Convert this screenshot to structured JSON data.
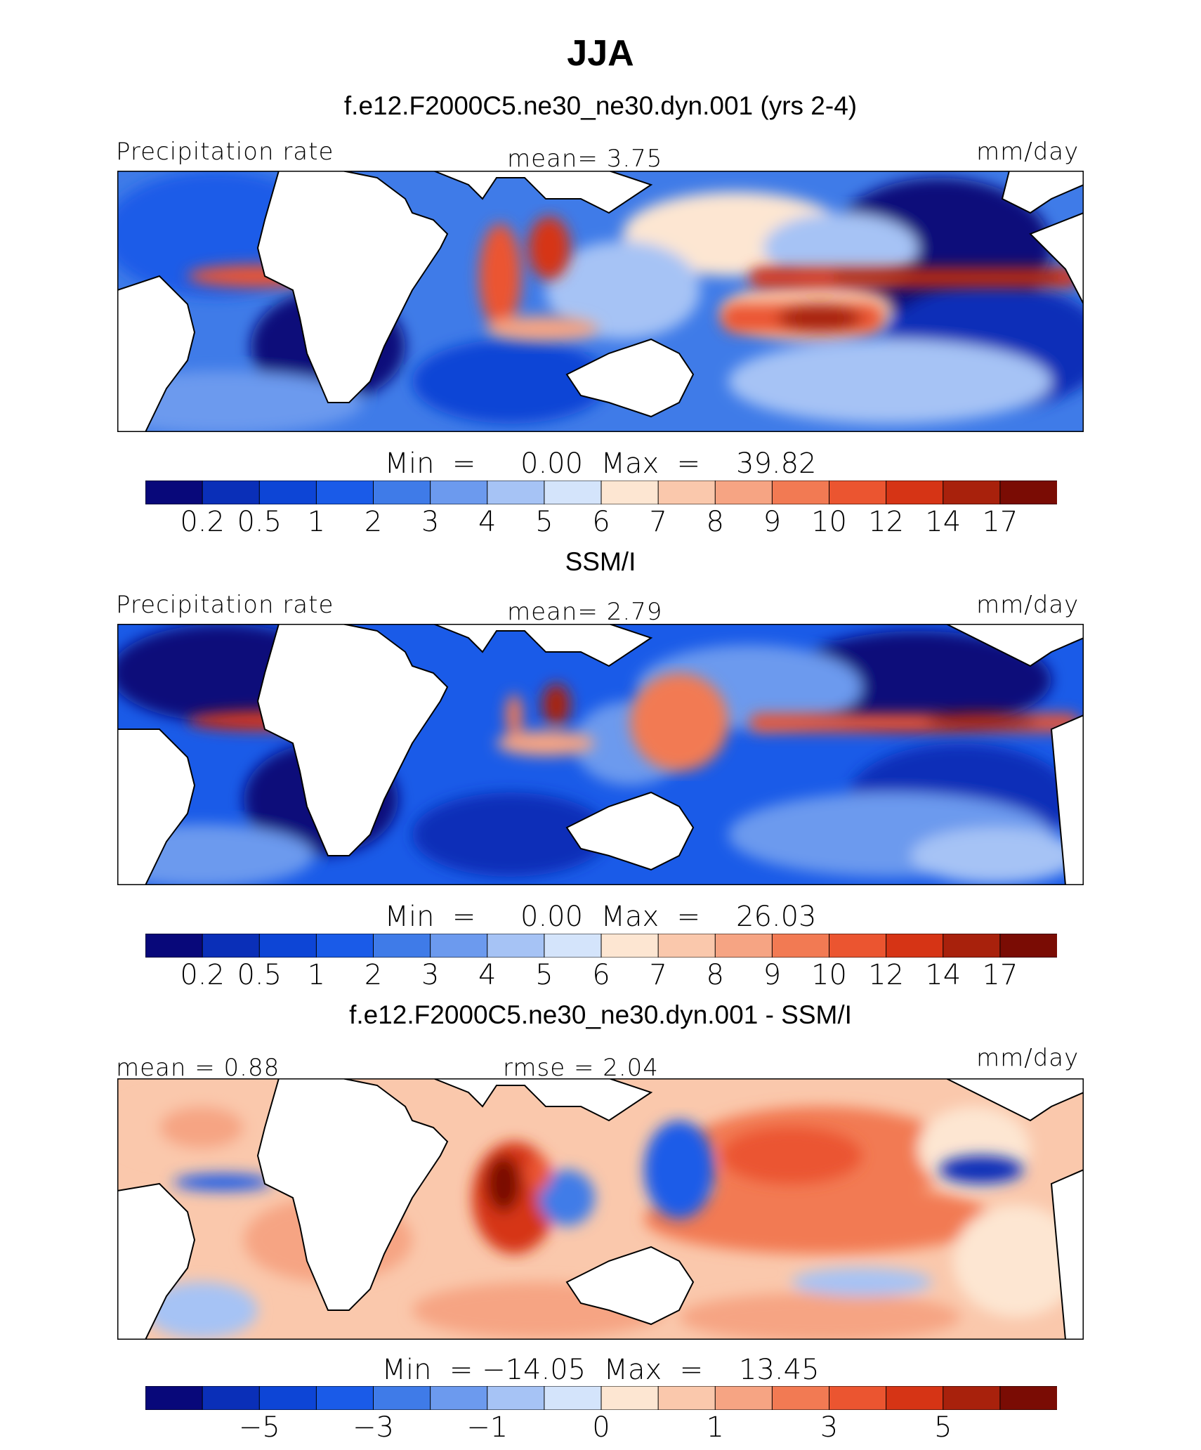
{
  "title": "JJA",
  "colors": {
    "scale": [
      "#08087a",
      "#0a2fb8",
      "#0d45d6",
      "#1a5be8",
      "#3f7be8",
      "#6c9aee",
      "#a6c3f5",
      "#d4e4fb",
      "#fde6d2",
      "#fac8ac",
      "#f6a483",
      "#f27a53",
      "#eb5530",
      "#d63415",
      "#a8210c",
      "#7a0c04"
    ]
  },
  "panels": [
    {
      "title": "f.e12.F2000C5.ne30_ne30.dyn.001 (yrs 2-4)",
      "left_label": "Precipitation rate",
      "center_label": "mean=   3.75",
      "right_label": "mm/day",
      "stat_line": "Min  =     0.00  Max  =    39.82"
    },
    {
      "title": "SSM/I",
      "left_label": "Precipitation rate",
      "center_label": "mean=   2.79",
      "right_label": "mm/day",
      "stat_line": "Min  =     0.00  Max  =    26.03"
    },
    {
      "title": "f.e12.F2000C5.ne30_ne30.dyn.001 - SSM/I",
      "left_label": "mean =    0.88",
      "center_label": "rmse  =    2.04",
      "right_label": "mm/day",
      "stat_line": "Min  = −14.05  Max  =    13.45"
    }
  ],
  "chart_data": [
    {
      "type": "heatmap",
      "title": "f.e12.F2000C5.ne30_ne30.dyn.001 (yrs 2-4)",
      "variable": "Precipitation rate",
      "units": "mm/day",
      "mean": 3.75,
      "min": 0.0,
      "max": 39.82,
      "colorbar_ticks": [
        "0.2",
        "0.5",
        "1",
        "2",
        "3",
        "4",
        "5",
        "6",
        "7",
        "8",
        "9",
        "10",
        "12",
        "14",
        "17"
      ]
    },
    {
      "type": "heatmap",
      "title": "SSM/I",
      "variable": "Precipitation rate",
      "units": "mm/day",
      "mean": 2.79,
      "min": 0.0,
      "max": 26.03,
      "colorbar_ticks": [
        "0.2",
        "0.5",
        "1",
        "2",
        "3",
        "4",
        "5",
        "6",
        "7",
        "8",
        "9",
        "10",
        "12",
        "14",
        "17"
      ]
    },
    {
      "type": "heatmap",
      "title": "f.e12.F2000C5.ne30_ne30.dyn.001 - SSM/I",
      "units": "mm/day",
      "mean": 0.88,
      "rmse": 2.04,
      "min": -14.05,
      "max": 13.45,
      "colorbar_ticks": [
        "−5",
        "−3",
        "−1",
        "0",
        "1",
        "3",
        "5"
      ]
    }
  ]
}
